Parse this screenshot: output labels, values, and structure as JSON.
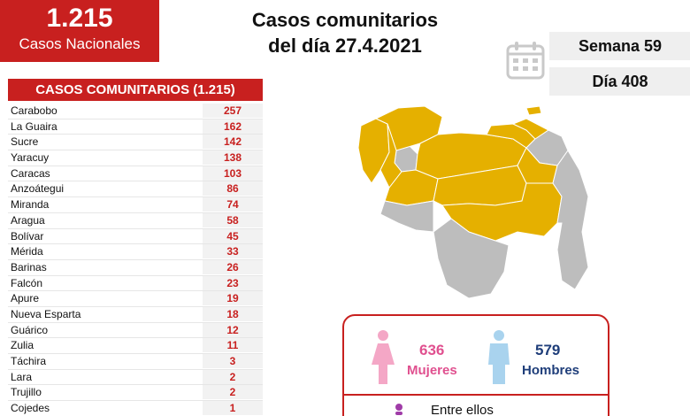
{
  "header": {
    "national_count": "1.215",
    "national_label": "Casos Nacionales",
    "title_line1": "Casos comunitarios",
    "title_line2": "del día 27.4.2021",
    "week_label": "Semana 59",
    "day_label": "Día 408"
  },
  "table": {
    "title": "CASOS COMUNITARIOS (1.215)",
    "rows": [
      {
        "state": "Carabobo",
        "cases": "257"
      },
      {
        "state": "La Guaira",
        "cases": "162"
      },
      {
        "state": "Sucre",
        "cases": "142"
      },
      {
        "state": "Yaracuy",
        "cases": "138"
      },
      {
        "state": "Caracas",
        "cases": "103"
      },
      {
        "state": "Anzoátegui",
        "cases": "86"
      },
      {
        "state": "Miranda",
        "cases": "74"
      },
      {
        "state": "Aragua",
        "cases": "58"
      },
      {
        "state": "Bolívar",
        "cases": "45"
      },
      {
        "state": "Mérida",
        "cases": "33"
      },
      {
        "state": "Barinas",
        "cases": "26"
      },
      {
        "state": "Falcón",
        "cases": "23"
      },
      {
        "state": "Apure",
        "cases": "19"
      },
      {
        "state": "Nueva Esparta",
        "cases": "18"
      },
      {
        "state": "Guárico",
        "cases": "12"
      },
      {
        "state": "Zulia",
        "cases": "11"
      },
      {
        "state": "Táchira",
        "cases": "3"
      },
      {
        "state": "Lara",
        "cases": "2"
      },
      {
        "state": "Trujillo",
        "cases": "2"
      },
      {
        "state": "Cojedes",
        "cases": "1"
      }
    ]
  },
  "gender": {
    "female_count": "636",
    "female_label": "Mujeres",
    "male_count": "579",
    "male_label": "Hombres",
    "among_label": "Entre ellos"
  },
  "colors": {
    "accent_red": "#c8201f",
    "map_highlight": "#e5b000",
    "map_gray": "#bdbdbd",
    "female": "#e0508f",
    "male": "#1f3e7a"
  },
  "icons": {
    "calendar": "calendar-icon",
    "female": "female-person-icon",
    "male": "male-person-icon",
    "among": "person-icon"
  }
}
